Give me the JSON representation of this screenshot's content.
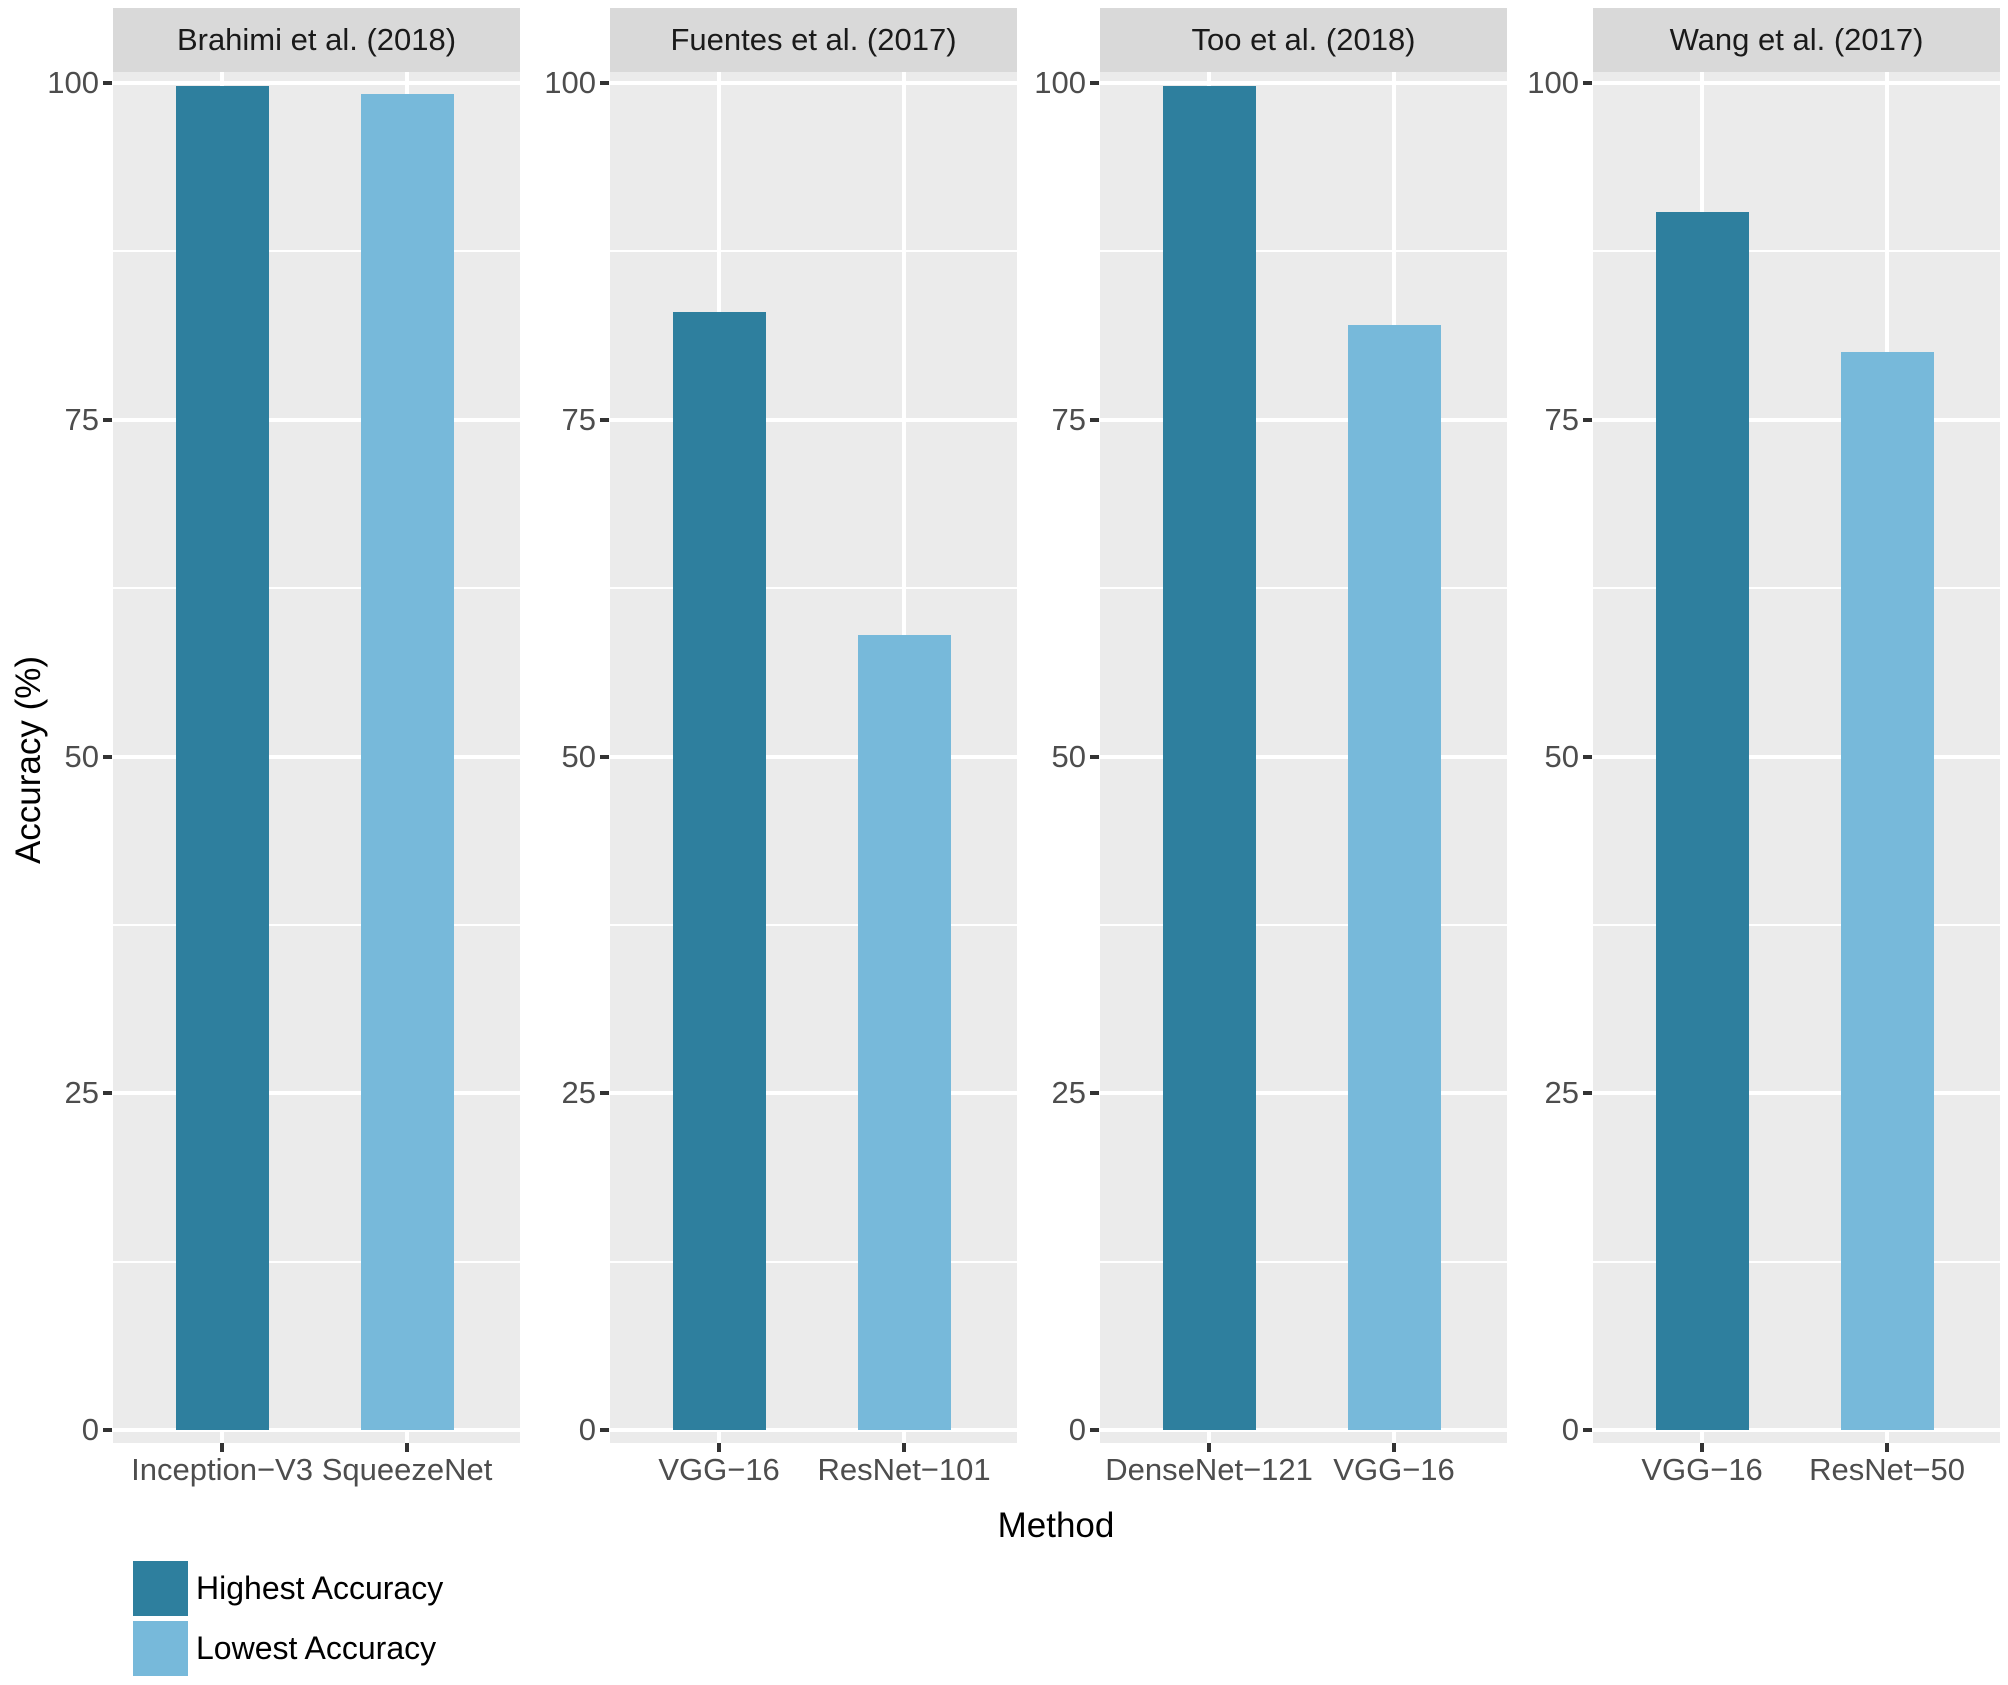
{
  "chart_data": {
    "type": "bar",
    "title": "",
    "xlabel": "Method",
    "ylabel": "Accuracy (%)",
    "ylim": [
      0,
      100
    ],
    "yticks": [
      0,
      25,
      50,
      75,
      100
    ],
    "yticks_minor": [
      12.5,
      37.5,
      62.5,
      87.5
    ],
    "grid": "white major and minor gridlines on gray panel (ggplot style)",
    "legend_position": "bottom-left",
    "facets": [
      {
        "title": "Brahimi et al. (2018)",
        "categories": [
          "Inception−V3",
          "SqueezeNet"
        ],
        "series": [
          {
            "name": "Highest Accuracy",
            "value": 99.8
          },
          {
            "name": "Lowest Accuracy",
            "value": 99.2
          }
        ]
      },
      {
        "title": "Fuentes et al. (2017)",
        "categories": [
          "VGG−16",
          "ResNet−101"
        ],
        "series": [
          {
            "name": "Highest Accuracy",
            "value": 83
          },
          {
            "name": "Lowest Accuracy",
            "value": 59
          }
        ]
      },
      {
        "title": "Too et al. (2018)",
        "categories": [
          "DenseNet−121",
          "VGG−16"
        ],
        "series": [
          {
            "name": "Highest Accuracy",
            "value": 99.8
          },
          {
            "name": "Lowest Accuracy",
            "value": 82
          }
        ]
      },
      {
        "title": "Wang et al. (2017)",
        "categories": [
          "VGG−16",
          "ResNet−50"
        ],
        "series": [
          {
            "name": "Highest Accuracy",
            "value": 90.4
          },
          {
            "name": "Lowest Accuracy",
            "value": 80
          }
        ]
      }
    ],
    "legend": [
      {
        "label": "Highest Accuracy",
        "color": "#2e7f9e"
      },
      {
        "label": "Lowest Accuracy",
        "color": "#77b9da"
      }
    ],
    "colors": {
      "panel_background": "#ebebeb",
      "strip_background": "#d9d9d9",
      "gridline": "#ffffff",
      "tick_mark": "#333333",
      "tick_text": "#4d4d4d"
    }
  }
}
